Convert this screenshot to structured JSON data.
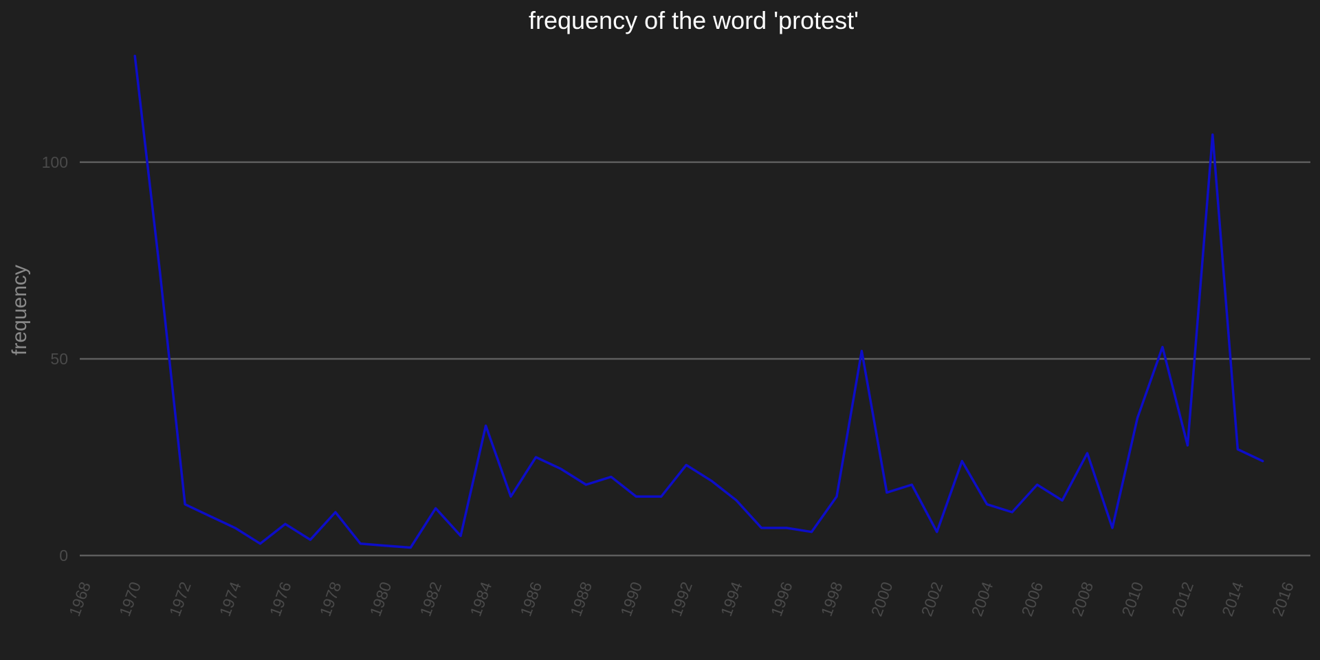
{
  "chart_data": {
    "type": "line",
    "title": "frequency of the word 'protest'",
    "xlabel": "",
    "ylabel": "frequency",
    "xlim": [
      1967.8,
      2016.9
    ],
    "ylim": [
      -3.5,
      129
    ],
    "x_ticks": [
      1968,
      1970,
      1972,
      1974,
      1976,
      1978,
      1980,
      1982,
      1984,
      1986,
      1988,
      1990,
      1992,
      1994,
      1996,
      1998,
      2000,
      2002,
      2004,
      2006,
      2008,
      2010,
      2012,
      2014,
      2016
    ],
    "y_ticks": [
      0,
      50,
      100
    ],
    "grid": "horizontal",
    "series": [
      {
        "color": "#0d0dc8",
        "x": [
          1970,
          1971,
          1972,
          1973,
          1974,
          1975,
          1976,
          1977,
          1978,
          1979,
          1980,
          1981,
          1982,
          1983,
          1984,
          1985,
          1986,
          1987,
          1988,
          1989,
          1990,
          1991,
          1992,
          1993,
          1994,
          1995,
          1996,
          1997,
          1998,
          1999,
          2000,
          2001,
          2002,
          2003,
          2004,
          2005,
          2006,
          2007,
          2008,
          2009,
          2010,
          2011,
          2012,
          2013,
          2014,
          2015
        ],
        "y": [
          127,
          72,
          13,
          10,
          7,
          3,
          8,
          4,
          11,
          3,
          2.5,
          2,
          12,
          5,
          33,
          15,
          25,
          22,
          18,
          20,
          15,
          15,
          23,
          19,
          14,
          7,
          7,
          6,
          15,
          52,
          16,
          18,
          6,
          24,
          13,
          11,
          18,
          14,
          26,
          7,
          35,
          53,
          28,
          107,
          27,
          24
        ]
      }
    ]
  }
}
